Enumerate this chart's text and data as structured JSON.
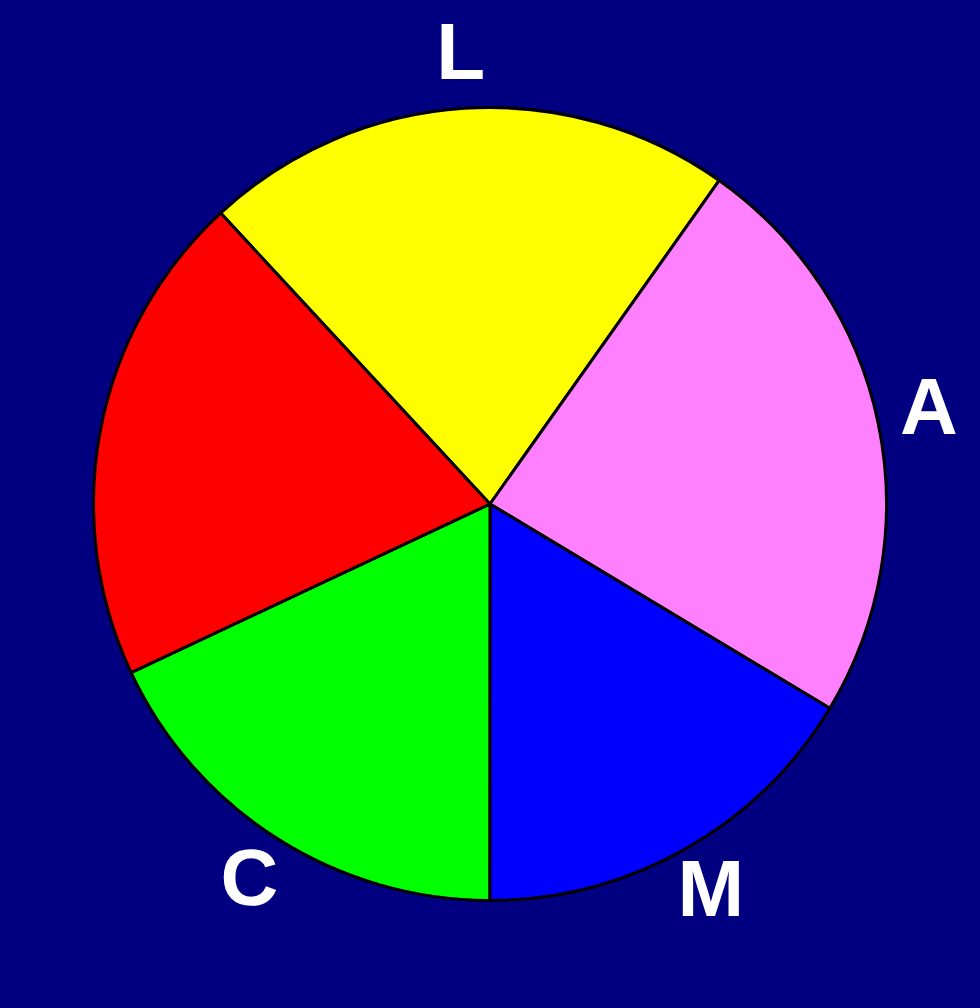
{
  "chart_data": {
    "type": "pie",
    "categories": [
      "L",
      "A",
      "M",
      "C",
      null
    ],
    "values": [
      21.7,
      23.8,
      16.4,
      18.0,
      20.1
    ],
    "colors": [
      "#ffff00",
      "#ff80ff",
      "#0000ff",
      "#00ff00",
      "#ff0000"
    ],
    "legend": false
  }
}
